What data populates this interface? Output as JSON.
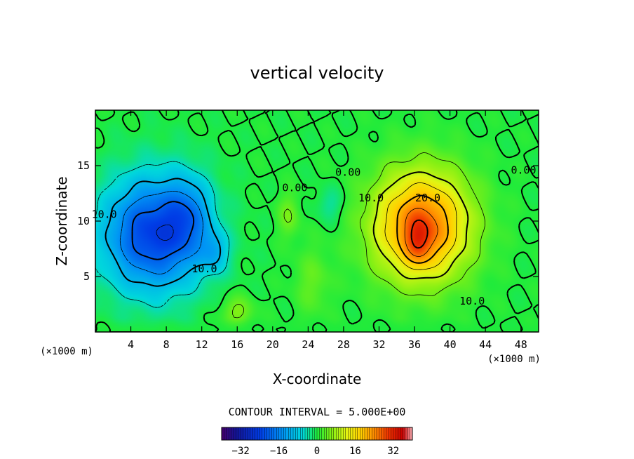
{
  "chart_data": {
    "type": "heatmap",
    "title": "vertical velocity",
    "xlabel": "X-coordinate",
    "ylabel": "Z-coordinate",
    "x_unit": "(×1000 m)",
    "z_unit": "(×1000 m)",
    "xlim": [
      0,
      50
    ],
    "ylim": [
      0,
      20
    ],
    "x_ticks": [
      4,
      8,
      12,
      16,
      20,
      24,
      28,
      32,
      36,
      40,
      44,
      48
    ],
    "y_ticks": [
      5,
      10,
      15
    ],
    "contour_interval_label": "CONTOUR INTERVAL = 5.000E+00",
    "contour_interval": 5,
    "color_range": [
      -40,
      40
    ],
    "colorbar_ticks": [
      -32,
      -16,
      0,
      16,
      32
    ],
    "colorbar_tick_labels": [
      "−32",
      "−16",
      "0",
      "16",
      "32"
    ],
    "contour_labels": [
      {
        "text": "10.0",
        "x": 1.0,
        "z": 10.6
      },
      {
        "text": "10.0",
        "x": 12.3,
        "z": 5.7
      },
      {
        "text": "0.00",
        "x": 22.5,
        "z": 13.0
      },
      {
        "text": "0.00",
        "x": 28.5,
        "z": 14.4
      },
      {
        "text": "10.0",
        "x": 31.1,
        "z": 12.1
      },
      {
        "text": "20.0",
        "x": 37.5,
        "z": 12.1
      },
      {
        "text": "10.0",
        "x": 42.5,
        "z": 2.8
      },
      {
        "text": "0.00",
        "x": 48.3,
        "z": 14.6
      }
    ],
    "features": [
      {
        "sign": "downdraft",
        "x": 6,
        "z": 7.5,
        "peak": -30
      },
      {
        "sign": "downdraft",
        "x": 10.5,
        "z": 10.5,
        "peak": -22
      },
      {
        "sign": "updraft",
        "x": 36.5,
        "z": 8.0,
        "peak": 33
      },
      {
        "sign": "updraft",
        "x": 16,
        "z": 1.8,
        "peak": 6
      },
      {
        "sign": "updraft",
        "x": 21.5,
        "z": 10.0,
        "peak": 5
      },
      {
        "sign": "downdraft",
        "x": 26,
        "z": 11.5,
        "peak": -4
      }
    ]
  }
}
